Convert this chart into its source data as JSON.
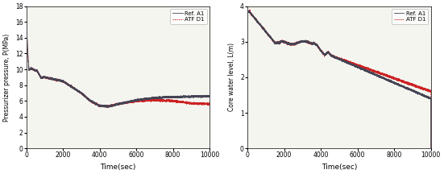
{
  "plot1": {
    "xlabel": "Time(sec)",
    "ylabel": "Pressurizer pressure, P(MPa)",
    "xlim": [
      0,
      10000
    ],
    "ylim": [
      0,
      18
    ],
    "yticks": [
      0,
      2,
      4,
      6,
      8,
      10,
      12,
      14,
      16,
      18
    ],
    "xticks": [
      0,
      2000,
      4000,
      6000,
      8000,
      10000
    ],
    "legend": [
      "Ref. A1",
      "ATF D1"
    ],
    "ref_color": "#444455",
    "atf_color": "#cc2222",
    "bg_color": "#f5f5f0"
  },
  "plot2": {
    "xlabel": "Time(sec)",
    "ylabel": "Core water level, L(m)",
    "xlim": [
      0,
      10000
    ],
    "ylim": [
      0,
      4
    ],
    "yticks": [
      0,
      1,
      2,
      3,
      4
    ],
    "xticks": [
      0,
      2000,
      4000,
      6000,
      8000,
      10000
    ],
    "legend": [
      "Ref. A1",
      "ATF D1"
    ],
    "ref_color": "#444455",
    "atf_color": "#cc2222",
    "bg_color": "#f5f5f0"
  }
}
